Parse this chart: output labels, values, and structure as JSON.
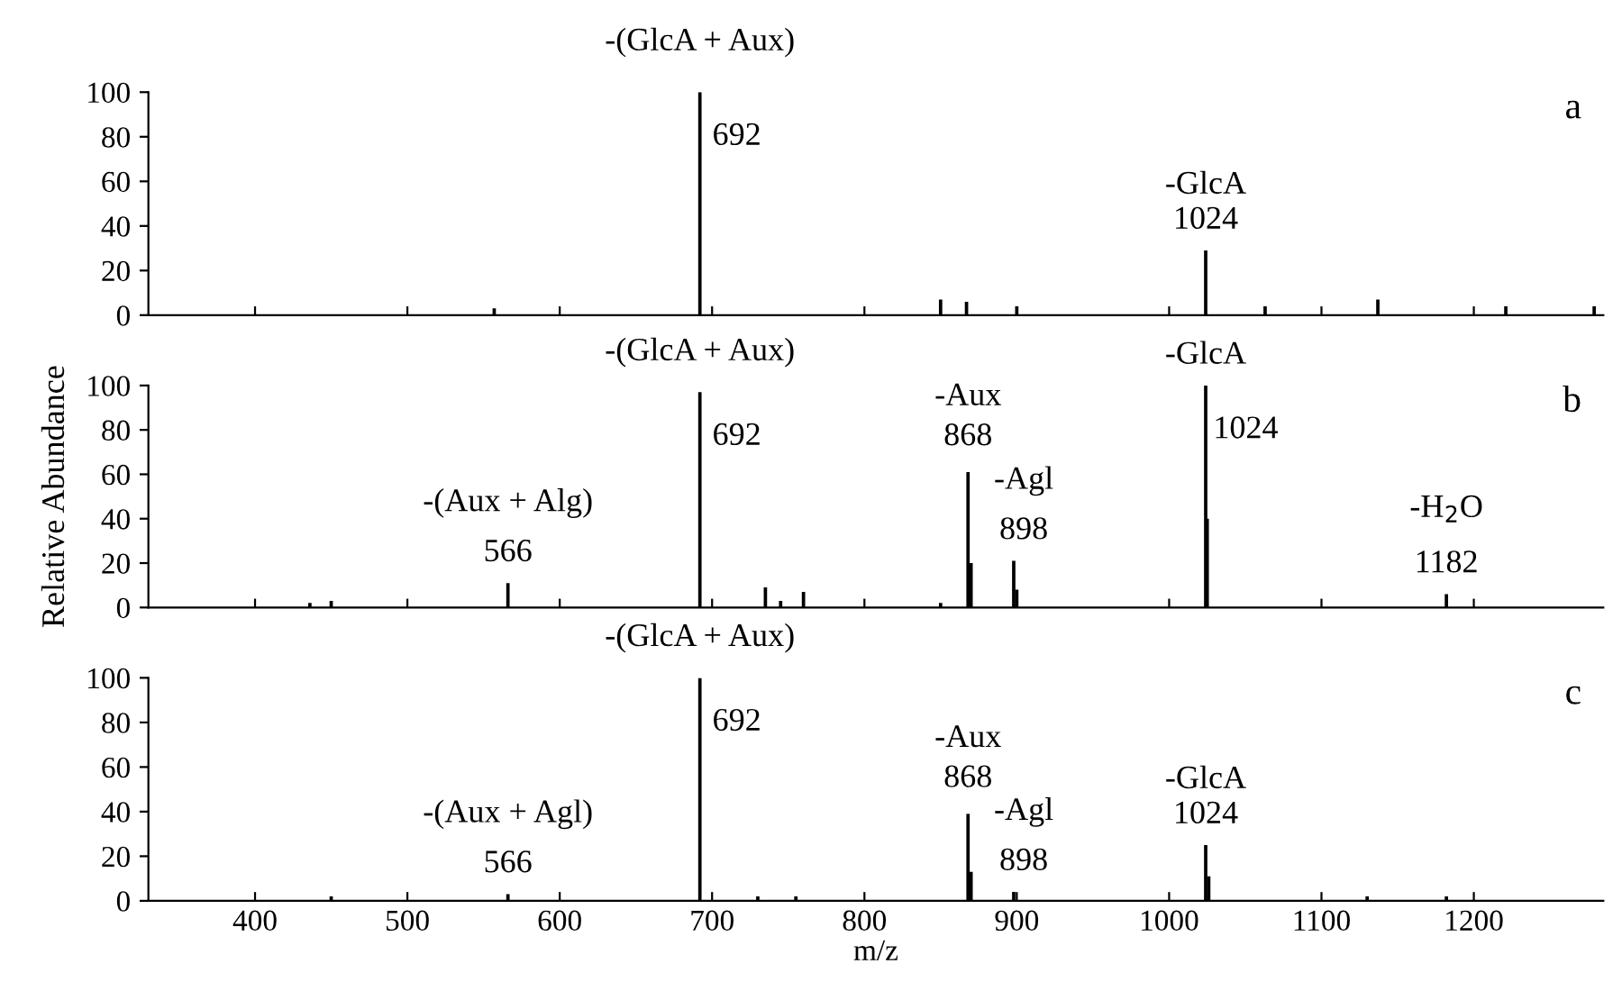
{
  "chart_data": [
    {
      "type": "bar",
      "ylabel": null,
      "x": [
        557,
        692,
        850,
        867,
        900,
        1024,
        1063,
        1137,
        1221,
        1279
      ],
      "values": [
        3,
        100,
        7,
        6,
        4,
        29,
        4,
        7,
        4,
        4
      ],
      "color": "#000000",
      "xlim": [
        330,
        1285
      ],
      "ylim": [
        0,
        100
      ],
      "yticks": [
        0,
        20,
        40,
        60,
        80,
        100
      ],
      "xticks": [
        400,
        500,
        600,
        700,
        800,
        900,
        1000,
        1100,
        1200
      ],
      "tick_labels": "y",
      "annotations": [
        {
          "text": "-(GlcA + Aux)",
          "x": 692,
          "y": 100
        },
        {
          "text": "692",
          "x": 692,
          "y": 100
        },
        {
          "text": "-GlcA",
          "x": 1024,
          "y": 29
        },
        {
          "text": "1024",
          "x": 1024,
          "y": 29
        },
        "a"
      ]
    },
    {
      "type": "bar",
      "ylabel": "Relative Abundance",
      "x": [
        436,
        450,
        566,
        692,
        735,
        745,
        760,
        850,
        868,
        870,
        898,
        900,
        1024,
        1025,
        1182
      ],
      "values": [
        2,
        3,
        11,
        97,
        9,
        3,
        7,
        2,
        61,
        20,
        21,
        8,
        100,
        40,
        6
      ],
      "color": "#000000",
      "xlim": [
        330,
        1285
      ],
      "ylim": [
        0,
        100
      ],
      "yticks": [
        0,
        20,
        40,
        60,
        80,
        100
      ],
      "xticks": [
        400,
        500,
        600,
        700,
        800,
        900,
        1000,
        1100,
        1200
      ],
      "tick_labels": "y",
      "annotations": [
        {
          "text": "-(GlcA + Aux)",
          "x": 692,
          "y": 97
        },
        {
          "text": "692",
          "x": 692,
          "y": 97
        },
        {
          "text": "-(Aux + Alg)",
          "x": 566,
          "y": 11
        },
        {
          "text": "566",
          "x": 566,
          "y": 11
        },
        {
          "text": "-Aux",
          "x": 868,
          "y": 61
        },
        {
          "text": "868",
          "x": 868,
          "y": 61
        },
        {
          "text": "-Agl",
          "x": 898,
          "y": 21
        },
        {
          "text": "898",
          "x": 898,
          "y": 21
        },
        {
          "text": "-GlcA",
          "x": 1024,
          "y": 100
        },
        {
          "text": "1024",
          "x": 1024,
          "y": 100
        },
        {
          "text": "-H$_{2}$O",
          "x": 1182,
          "y": 6
        },
        {
          "text": "1182",
          "x": 1182,
          "y": 6
        },
        "b"
      ]
    },
    {
      "type": "bar",
      "ylabel": null,
      "xlabel": "m/z",
      "x": [
        450,
        566,
        692,
        730,
        755,
        868,
        870,
        898,
        1024,
        1026,
        1130,
        1182
      ],
      "values": [
        2,
        3,
        100,
        2,
        2,
        39,
        13,
        4,
        25,
        11,
        2,
        2
      ],
      "color": "#000000",
      "xlim": [
        330,
        1285
      ],
      "ylim": [
        0,
        100
      ],
      "yticks": [
        0,
        20,
        40,
        60,
        80,
        100
      ],
      "xticks": [
        400,
        500,
        600,
        700,
        800,
        900,
        1000,
        1100,
        1200
      ],
      "annotations": [
        {
          "text": "-(GlcA + Aux)",
          "x": 692,
          "y": 100
        },
        {
          "text": "692",
          "x": 692,
          "y": 100
        },
        {
          "text": "-(Aux + Agl)",
          "x": 566,
          "y": 3
        },
        {
          "text": "566",
          "x": 566,
          "y": 3
        },
        {
          "text": "-Aux",
          "x": 868,
          "y": 39
        },
        {
          "text": "868",
          "x": 868,
          "y": 39
        },
        {
          "text": "-Agl",
          "x": 898,
          "y": 4
        },
        {
          "text": "898",
          "x": 898,
          "y": 4
        },
        {
          "text": "-GlcA",
          "x": 1024,
          "y": 25
        },
        {
          "text": "1024",
          "x": 1024,
          "y": 25
        },
        "c"
      ]
    }
  ]
}
